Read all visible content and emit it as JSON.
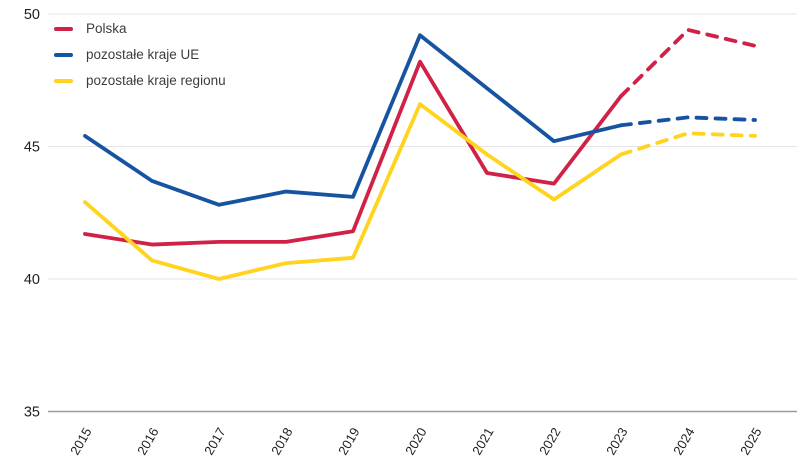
{
  "chart_data": {
    "type": "line",
    "x": [
      2015,
      2016,
      2017,
      2018,
      2019,
      2020,
      2021,
      2022,
      2023,
      2024,
      2025
    ],
    "yticks": [
      50,
      45,
      40,
      35
    ],
    "ylim": [
      35,
      50
    ],
    "grid": "horizontal-light",
    "legend_position": "top-left",
    "forecast_from_year": 2023,
    "forecast_style": "dashed",
    "series": [
      {
        "name": "Polska",
        "color": "#d02147",
        "values": [
          41.7,
          41.3,
          41.4,
          41.4,
          41.8,
          48.2,
          44.0,
          43.6,
          46.9,
          49.4,
          48.8
        ]
      },
      {
        "name": "pozostałe kraje UE",
        "color": "#1653a0",
        "values": [
          45.4,
          43.7,
          42.8,
          43.3,
          43.1,
          49.2,
          47.2,
          45.2,
          45.8,
          46.1,
          46.0
        ]
      },
      {
        "name": "pozostałe kraje regionu",
        "color": "#ffd31e",
        "values": [
          42.9,
          40.7,
          40.0,
          40.6,
          40.8,
          46.6,
          44.7,
          43.0,
          44.7,
          45.5,
          45.4
        ]
      }
    ],
    "axis_colors": {
      "grid": "#e5e5e5",
      "baseline": "#9b9b9b",
      "tick_text": "#1f1f1f"
    }
  }
}
